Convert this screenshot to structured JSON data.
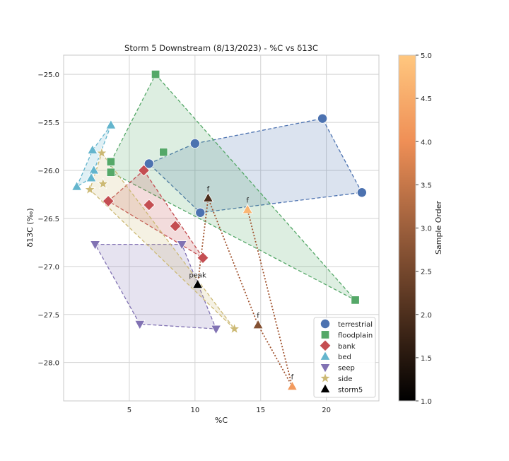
{
  "chart_data": {
    "type": "scatter",
    "title": "Storm 5 Downstream (8/13/2023) - %C vs δ13C",
    "xlabel": "%C",
    "ylabel": "δ13C (‰)",
    "xlim": [
      0,
      24
    ],
    "ylim": [
      -28.4,
      -24.8
    ],
    "xticks": [
      5,
      10,
      15,
      20
    ],
    "yticks": [
      -25.0,
      -25.5,
      -26.0,
      -26.5,
      -27.0,
      -27.5,
      -28.0
    ],
    "ytick_labels": [
      "−25.0",
      "−25.5",
      "−26.0",
      "−26.5",
      "−27.0",
      "−27.5",
      "−28.0"
    ],
    "grid": true,
    "legend_position": "lower-right",
    "series": [
      {
        "name": "terrestrial",
        "marker": "circle",
        "color": "#4c72b0",
        "points": [
          [
            6.5,
            -25.93
          ],
          [
            10.0,
            -25.72
          ],
          [
            19.7,
            -25.46
          ],
          [
            22.7,
            -26.23
          ],
          [
            10.4,
            -26.44
          ]
        ],
        "hull": [
          [
            6.5,
            -25.93
          ],
          [
            10.0,
            -25.72
          ],
          [
            19.7,
            -25.46
          ],
          [
            22.7,
            -26.23
          ],
          [
            10.4,
            -26.44
          ]
        ]
      },
      {
        "name": "floodplain",
        "marker": "square",
        "color": "#55a868",
        "points": [
          [
            7.0,
            -25.0
          ],
          [
            7.6,
            -25.81
          ],
          [
            3.6,
            -25.91
          ],
          [
            3.6,
            -26.02
          ],
          [
            22.2,
            -27.35
          ]
        ],
        "hull": [
          [
            7.0,
            -25.0
          ],
          [
            22.2,
            -27.35
          ],
          [
            3.6,
            -26.02
          ],
          [
            3.6,
            -25.91
          ]
        ]
      },
      {
        "name": "bank",
        "marker": "diamond",
        "color": "#c44e52",
        "points": [
          [
            6.1,
            -26.0
          ],
          [
            3.4,
            -26.32
          ],
          [
            6.5,
            -26.36
          ],
          [
            8.5,
            -26.58
          ],
          [
            10.6,
            -26.91
          ]
        ],
        "hull": [
          [
            6.1,
            -26.0
          ],
          [
            10.6,
            -26.91
          ],
          [
            3.4,
            -26.32
          ]
        ]
      },
      {
        "name": "bed",
        "marker": "triangle-up",
        "color": "#64b5cd",
        "points": [
          [
            3.6,
            -25.53
          ],
          [
            2.2,
            -25.79
          ],
          [
            2.3,
            -26.0
          ],
          [
            2.1,
            -26.08
          ],
          [
            1.0,
            -26.17
          ]
        ],
        "hull": [
          [
            3.6,
            -25.53
          ],
          [
            2.1,
            -26.08
          ],
          [
            1.0,
            -26.17
          ],
          [
            2.2,
            -25.79
          ]
        ]
      },
      {
        "name": "seep",
        "marker": "triangle-down",
        "color": "#8172b3",
        "points": [
          [
            2.4,
            -26.77
          ],
          [
            9.0,
            -26.77
          ],
          [
            5.8,
            -27.6
          ],
          [
            11.6,
            -27.65
          ]
        ],
        "hull": [
          [
            2.4,
            -26.77
          ],
          [
            9.0,
            -26.77
          ],
          [
            11.6,
            -27.65
          ],
          [
            5.8,
            -27.6
          ]
        ]
      },
      {
        "name": "side",
        "marker": "star",
        "color": "#ccb974",
        "points": [
          [
            2.9,
            -25.82
          ],
          [
            3.0,
            -26.14
          ],
          [
            2.0,
            -26.2
          ],
          [
            13.0,
            -27.65
          ]
        ],
        "hull": [
          [
            2.9,
            -25.82
          ],
          [
            13.0,
            -27.65
          ],
          [
            2.0,
            -26.2
          ]
        ]
      },
      {
        "name": "storm5",
        "marker": "triangle-up",
        "color": "#000000",
        "points": [
          {
            "x": 10.2,
            "y": -27.19,
            "order": 1.0,
            "label": "peak"
          },
          {
            "x": 11.0,
            "y": -26.29,
            "order": 2.0,
            "label": "f"
          },
          {
            "x": 14.8,
            "y": -27.61,
            "order": 2.7,
            "label": "f"
          },
          {
            "x": 17.4,
            "y": -28.25,
            "order": 4.2,
            "label": "f"
          },
          {
            "x": 14.0,
            "y": -26.41,
            "order": 4.7,
            "label": "f"
          }
        ]
      }
    ],
    "colorbar": {
      "label": "Sample Order",
      "min": 1.0,
      "max": 5.0,
      "ticks": [
        1.0,
        1.5,
        2.0,
        2.5,
        3.0,
        3.5,
        4.0,
        4.5,
        5.0
      ],
      "tick_labels": [
        "1.0",
        "1.5",
        "2.0",
        "2.5",
        "3.0",
        "3.5",
        "4.0",
        "4.5",
        "5.0"
      ]
    },
    "trajectory_color": "#a0522d"
  }
}
